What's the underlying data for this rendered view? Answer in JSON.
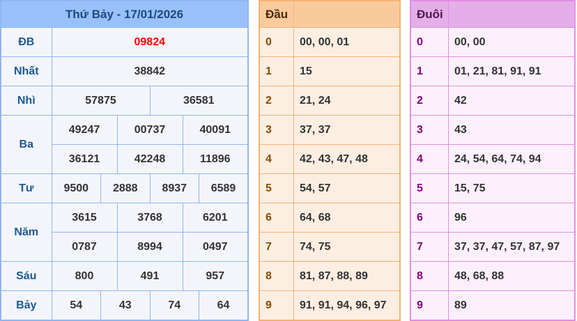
{
  "results": {
    "title": "Thứ Bảy - 17/01/2026",
    "rows": [
      {
        "label": "ĐB",
        "values": [
          "09824"
        ]
      },
      {
        "label": "Nhất",
        "values": [
          "38842"
        ]
      },
      {
        "label": "Nhì",
        "values": [
          "57875",
          "36581"
        ]
      },
      {
        "label": "Ba",
        "values": [
          "49247",
          "00737",
          "40091",
          "36121",
          "42248",
          "11896"
        ]
      },
      {
        "label": "Tư",
        "values": [
          "9500",
          "2888",
          "8937",
          "6589"
        ]
      },
      {
        "label": "Năm",
        "values": [
          "3615",
          "3768",
          "6201",
          "0787",
          "8994",
          "0497"
        ]
      },
      {
        "label": "Sáu",
        "values": [
          "800",
          "491",
          "957"
        ]
      },
      {
        "label": "Bảy",
        "values": [
          "54",
          "43",
          "74",
          "64"
        ]
      }
    ]
  },
  "dau": {
    "header": "Đầu",
    "rows": [
      {
        "d": "0",
        "v": "00, 00, 01"
      },
      {
        "d": "1",
        "v": "15"
      },
      {
        "d": "2",
        "v": "21, 24"
      },
      {
        "d": "3",
        "v": "37, 37"
      },
      {
        "d": "4",
        "v": "42, 43, 47, 48"
      },
      {
        "d": "5",
        "v": "54, 57"
      },
      {
        "d": "6",
        "v": "64, 68"
      },
      {
        "d": "7",
        "v": "74, 75"
      },
      {
        "d": "8",
        "v": "81, 87, 88, 89"
      },
      {
        "d": "9",
        "v": "91, 91, 94, 96, 97"
      }
    ]
  },
  "duoi": {
    "header": "Đuôi",
    "rows": [
      {
        "d": "0",
        "v": "00, 00"
      },
      {
        "d": "1",
        "v": "01, 21, 81, 91, 91"
      },
      {
        "d": "2",
        "v": "42"
      },
      {
        "d": "3",
        "v": "43"
      },
      {
        "d": "4",
        "v": "24, 54, 64, 74, 94"
      },
      {
        "d": "5",
        "v": "15, 75"
      },
      {
        "d": "6",
        "v": "96"
      },
      {
        "d": "7",
        "v": "37, 37, 47, 57, 87, 97"
      },
      {
        "d": "8",
        "v": "48, 68, 88"
      },
      {
        "d": "9",
        "v": "89"
      }
    ]
  }
}
